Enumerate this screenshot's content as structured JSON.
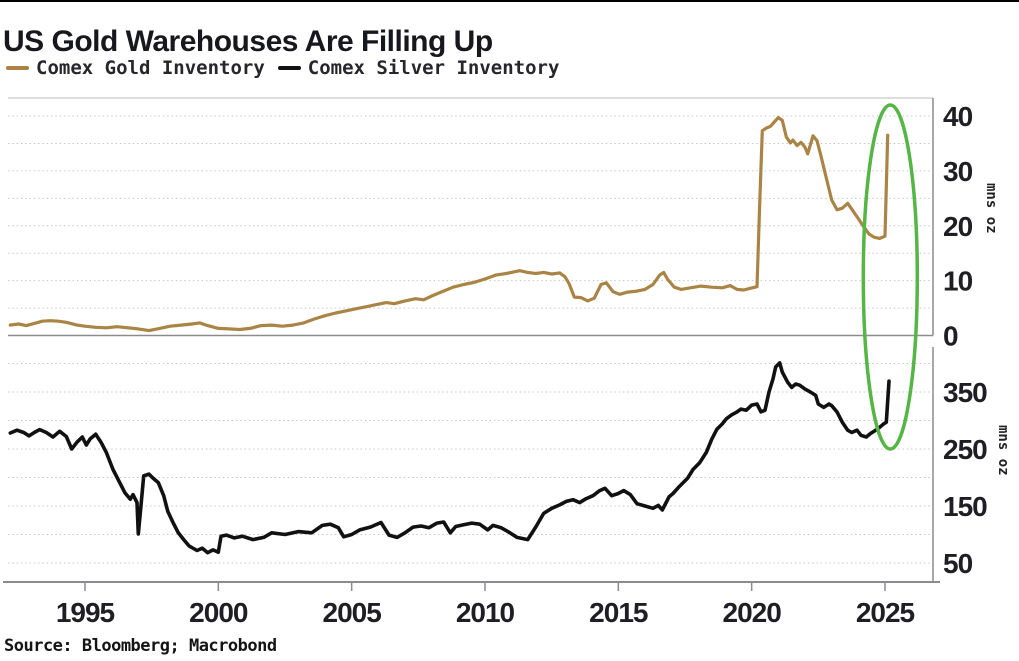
{
  "header": {
    "title": "US Gold Warehouses Are Filling Up"
  },
  "source_note": "Source: Bloomberg; Macrobond",
  "colors": {
    "gold_line": "#aa8444",
    "silver_line": "#111111",
    "highlight_green": "#55b545",
    "gridline": "#c7c7c7",
    "axis": "#8b8b90",
    "text": "#1e1e24"
  },
  "chart_data": {
    "type": "line",
    "title": "US Gold Warehouses Are Filling Up",
    "source": "Source: Bloomberg; Macrobond",
    "x_ticks": [
      1995,
      2000,
      2005,
      2010,
      2015,
      2020,
      2025
    ],
    "x_range": [
      1992.1,
      2026.9
    ],
    "grid": "dotted horizontal",
    "legend_position": "top-left",
    "annotation": {
      "shape": "ellipse",
      "color": "#55b545",
      "circles": "the early-2025 vertical surge in both panels",
      "center_year": 2025.2
    },
    "panels": [
      {
        "series": "Comex Gold Inventory",
        "color": "#aa8444",
        "unit_label": "mns oz",
        "y_ticks": [
          0,
          10,
          20,
          30,
          40
        ],
        "grid_values": [
          5,
          10,
          15,
          20,
          25,
          30,
          35,
          40
        ],
        "ylim": [
          0,
          43
        ],
        "points": [
          [
            1992.2,
            1.9
          ],
          [
            1992.5,
            2.1
          ],
          [
            1992.8,
            1.8
          ],
          [
            1993.1,
            2.2
          ],
          [
            1993.4,
            2.6
          ],
          [
            1993.7,
            2.7
          ],
          [
            1994.0,
            2.6
          ],
          [
            1994.3,
            2.4
          ],
          [
            1994.7,
            1.9
          ],
          [
            1995.0,
            1.7
          ],
          [
            1995.4,
            1.5
          ],
          [
            1995.8,
            1.4
          ],
          [
            1996.2,
            1.6
          ],
          [
            1996.6,
            1.4
          ],
          [
            1997.0,
            1.2
          ],
          [
            1997.4,
            0.9
          ],
          [
            1997.8,
            1.3
          ],
          [
            1998.2,
            1.7
          ],
          [
            1998.6,
            1.9
          ],
          [
            1999.0,
            2.1
          ],
          [
            1999.3,
            2.3
          ],
          [
            1999.6,
            1.8
          ],
          [
            2000.0,
            1.3
          ],
          [
            2000.4,
            1.2
          ],
          [
            2000.8,
            1.1
          ],
          [
            2001.2,
            1.3
          ],
          [
            2001.6,
            1.8
          ],
          [
            2002.0,
            1.9
          ],
          [
            2002.4,
            1.7
          ],
          [
            2002.8,
            1.9
          ],
          [
            2003.2,
            2.3
          ],
          [
            2003.6,
            3.0
          ],
          [
            2004.0,
            3.6
          ],
          [
            2004.4,
            4.1
          ],
          [
            2004.8,
            4.5
          ],
          [
            2005.2,
            4.9
          ],
          [
            2005.6,
            5.3
          ],
          [
            2006.0,
            5.7
          ],
          [
            2006.3,
            6.0
          ],
          [
            2006.6,
            5.8
          ],
          [
            2007.0,
            6.3
          ],
          [
            2007.4,
            6.7
          ],
          [
            2007.7,
            6.5
          ],
          [
            2008.0,
            7.2
          ],
          [
            2008.4,
            8.0
          ],
          [
            2008.8,
            8.8
          ],
          [
            2009.2,
            9.3
          ],
          [
            2009.6,
            9.7
          ],
          [
            2010.0,
            10.3
          ],
          [
            2010.4,
            11.0
          ],
          [
            2010.8,
            11.3
          ],
          [
            2011.3,
            11.8
          ],
          [
            2011.6,
            11.5
          ],
          [
            2011.9,
            11.3
          ],
          [
            2012.2,
            11.5
          ],
          [
            2012.5,
            11.2
          ],
          [
            2012.8,
            11.4
          ],
          [
            2013.0,
            10.7
          ],
          [
            2013.15,
            9.5
          ],
          [
            2013.35,
            7.0
          ],
          [
            2013.6,
            6.9
          ],
          [
            2013.85,
            6.3
          ],
          [
            2014.1,
            6.8
          ],
          [
            2014.35,
            9.3
          ],
          [
            2014.55,
            9.6
          ],
          [
            2014.8,
            8.0
          ],
          [
            2015.05,
            7.5
          ],
          [
            2015.35,
            7.9
          ],
          [
            2015.7,
            8.1
          ],
          [
            2016.0,
            8.4
          ],
          [
            2016.3,
            9.3
          ],
          [
            2016.55,
            11.0
          ],
          [
            2016.7,
            11.5
          ],
          [
            2016.85,
            10.2
          ],
          [
            2017.1,
            8.8
          ],
          [
            2017.35,
            8.4
          ],
          [
            2017.7,
            8.7
          ],
          [
            2018.1,
            9.0
          ],
          [
            2018.5,
            8.8
          ],
          [
            2018.9,
            8.7
          ],
          [
            2019.2,
            9.1
          ],
          [
            2019.45,
            8.4
          ],
          [
            2019.7,
            8.3
          ],
          [
            2019.95,
            8.6
          ],
          [
            2020.2,
            8.9
          ],
          [
            2020.3,
            24.0
          ],
          [
            2020.4,
            37.3
          ],
          [
            2020.55,
            37.8
          ],
          [
            2020.7,
            38.1
          ],
          [
            2020.85,
            38.9
          ],
          [
            2021.0,
            39.7
          ],
          [
            2021.15,
            39.2
          ],
          [
            2021.3,
            36.2
          ],
          [
            2021.45,
            35.1
          ],
          [
            2021.55,
            35.6
          ],
          [
            2021.7,
            34.6
          ],
          [
            2021.85,
            35.2
          ],
          [
            2022.0,
            34.3
          ],
          [
            2022.1,
            33.1
          ],
          [
            2022.3,
            36.4
          ],
          [
            2022.45,
            35.5
          ],
          [
            2022.6,
            32.7
          ],
          [
            2022.8,
            28.7
          ],
          [
            2023.0,
            24.7
          ],
          [
            2023.2,
            22.9
          ],
          [
            2023.4,
            23.2
          ],
          [
            2023.6,
            24.1
          ],
          [
            2023.8,
            22.7
          ],
          [
            2024.0,
            21.3
          ],
          [
            2024.2,
            19.8
          ],
          [
            2024.4,
            18.5
          ],
          [
            2024.6,
            17.9
          ],
          [
            2024.8,
            17.7
          ],
          [
            2025.0,
            18.1
          ],
          [
            2025.1,
            36.5
          ]
        ]
      },
      {
        "series": "Comex Silver Inventory",
        "color": "#111111",
        "unit_label": "mns oz",
        "y_ticks": [
          50,
          150,
          250,
          350
        ],
        "grid_values": [
          50,
          100,
          150,
          200,
          250,
          300,
          350,
          400
        ],
        "ylim": [
          17,
          424
        ],
        "points": [
          [
            1992.2,
            278
          ],
          [
            1992.45,
            283
          ],
          [
            1992.7,
            279
          ],
          [
            1992.9,
            273
          ],
          [
            1993.1,
            279
          ],
          [
            1993.3,
            284
          ],
          [
            1993.55,
            279
          ],
          [
            1993.8,
            271
          ],
          [
            1994.05,
            281
          ],
          [
            1994.3,
            272
          ],
          [
            1994.5,
            250
          ],
          [
            1994.7,
            262
          ],
          [
            1994.9,
            271
          ],
          [
            1995.05,
            257
          ],
          [
            1995.2,
            268
          ],
          [
            1995.4,
            276
          ],
          [
            1995.6,
            262
          ],
          [
            1995.8,
            244
          ],
          [
            1996.05,
            214
          ],
          [
            1996.3,
            191
          ],
          [
            1996.5,
            173
          ],
          [
            1996.7,
            162
          ],
          [
            1996.8,
            170
          ],
          [
            1996.95,
            156
          ],
          [
            1997.0,
            101
          ],
          [
            1997.1,
            151
          ],
          [
            1997.2,
            203
          ],
          [
            1997.4,
            206
          ],
          [
            1997.55,
            199
          ],
          [
            1997.75,
            191
          ],
          [
            1997.95,
            168
          ],
          [
            1998.1,
            141
          ],
          [
            1998.3,
            121
          ],
          [
            1998.5,
            103
          ],
          [
            1998.7,
            91
          ],
          [
            1998.9,
            80
          ],
          [
            1999.2,
            72
          ],
          [
            1999.4,
            76
          ],
          [
            1999.6,
            68
          ],
          [
            1999.8,
            73
          ],
          [
            2000.0,
            69
          ],
          [
            2000.1,
            97
          ],
          [
            2000.3,
            99
          ],
          [
            2000.6,
            94
          ],
          [
            2000.9,
            97
          ],
          [
            2001.3,
            91
          ],
          [
            2001.7,
            95
          ],
          [
            2002.0,
            103
          ],
          [
            2002.5,
            100
          ],
          [
            2003.0,
            105
          ],
          [
            2003.5,
            103
          ],
          [
            2003.9,
            116
          ],
          [
            2004.2,
            118
          ],
          [
            2004.5,
            112
          ],
          [
            2004.7,
            96
          ],
          [
            2005.0,
            100
          ],
          [
            2005.3,
            108
          ],
          [
            2005.7,
            113
          ],
          [
            2006.1,
            121
          ],
          [
            2006.4,
            99
          ],
          [
            2006.7,
            95
          ],
          [
            2007.0,
            103
          ],
          [
            2007.3,
            113
          ],
          [
            2007.6,
            115
          ],
          [
            2007.9,
            112
          ],
          [
            2008.2,
            120
          ],
          [
            2008.45,
            122
          ],
          [
            2008.7,
            103
          ],
          [
            2008.9,
            114
          ],
          [
            2009.2,
            117
          ],
          [
            2009.5,
            120
          ],
          [
            2009.8,
            118
          ],
          [
            2010.1,
            108
          ],
          [
            2010.3,
            116
          ],
          [
            2010.6,
            112
          ],
          [
            2010.9,
            104
          ],
          [
            2011.2,
            95
          ],
          [
            2011.6,
            91
          ],
          [
            2011.9,
            113
          ],
          [
            2012.2,
            137
          ],
          [
            2012.5,
            146
          ],
          [
            2012.8,
            152
          ],
          [
            2013.05,
            158
          ],
          [
            2013.3,
            161
          ],
          [
            2013.55,
            156
          ],
          [
            2013.8,
            163
          ],
          [
            2014.05,
            168
          ],
          [
            2014.3,
            177
          ],
          [
            2014.5,
            181
          ],
          [
            2014.75,
            168
          ],
          [
            2015.0,
            172
          ],
          [
            2015.2,
            177
          ],
          [
            2015.45,
            170
          ],
          [
            2015.7,
            154
          ],
          [
            2016.0,
            150
          ],
          [
            2016.3,
            146
          ],
          [
            2016.5,
            151
          ],
          [
            2016.65,
            143
          ],
          [
            2016.9,
            166
          ],
          [
            2017.05,
            172
          ],
          [
            2017.3,
            185
          ],
          [
            2017.6,
            199
          ],
          [
            2017.8,
            214
          ],
          [
            2018.05,
            226
          ],
          [
            2018.3,
            244
          ],
          [
            2018.5,
            267
          ],
          [
            2018.7,
            285
          ],
          [
            2018.9,
            294
          ],
          [
            2019.05,
            303
          ],
          [
            2019.25,
            310
          ],
          [
            2019.45,
            315
          ],
          [
            2019.6,
            320
          ],
          [
            2019.8,
            318
          ],
          [
            2020.0,
            327
          ],
          [
            2020.2,
            329
          ],
          [
            2020.35,
            315
          ],
          [
            2020.5,
            318
          ],
          [
            2020.65,
            350
          ],
          [
            2020.8,
            373
          ],
          [
            2020.9,
            394
          ],
          [
            2021.05,
            401
          ],
          [
            2021.15,
            385
          ],
          [
            2021.35,
            367
          ],
          [
            2021.5,
            358
          ],
          [
            2021.65,
            364
          ],
          [
            2021.8,
            362
          ],
          [
            2022.0,
            355
          ],
          [
            2022.2,
            350
          ],
          [
            2022.4,
            344
          ],
          [
            2022.5,
            329
          ],
          [
            2022.7,
            323
          ],
          [
            2022.9,
            329
          ],
          [
            2023.0,
            326
          ],
          [
            2023.2,
            315
          ],
          [
            2023.4,
            297
          ],
          [
            2023.6,
            283
          ],
          [
            2023.75,
            279
          ],
          [
            2023.95,
            283
          ],
          [
            2024.1,
            274
          ],
          [
            2024.3,
            271
          ],
          [
            2024.45,
            277
          ],
          [
            2024.65,
            283
          ],
          [
            2024.8,
            288
          ],
          [
            2024.95,
            294
          ],
          [
            2025.05,
            297
          ],
          [
            2025.15,
            369
          ]
        ]
      }
    ]
  }
}
